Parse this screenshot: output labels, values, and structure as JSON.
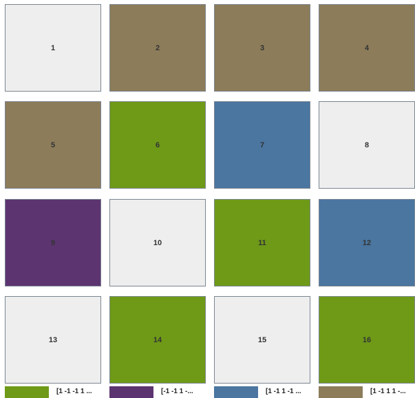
{
  "colors": {
    "white": "#eeeeee",
    "tan": "#8c7c5a",
    "green": "#6e9a18",
    "blue": "#4a76a0",
    "purple": "#5c3470"
  },
  "tiles": [
    {
      "label": "1",
      "color": "white"
    },
    {
      "label": "2",
      "color": "tan"
    },
    {
      "label": "3",
      "color": "tan"
    },
    {
      "label": "4",
      "color": "tan"
    },
    {
      "label": "5",
      "color": "tan"
    },
    {
      "label": "6",
      "color": "green"
    },
    {
      "label": "7",
      "color": "blue"
    },
    {
      "label": "8",
      "color": "white"
    },
    {
      "label": "9",
      "color": "purple"
    },
    {
      "label": "10",
      "color": "white"
    },
    {
      "label": "11",
      "color": "green"
    },
    {
      "label": "12",
      "color": "blue"
    },
    {
      "label": "13",
      "color": "white"
    },
    {
      "label": "14",
      "color": "green"
    },
    {
      "label": "15",
      "color": "white"
    },
    {
      "label": "16",
      "color": "green"
    }
  ],
  "legend": [
    {
      "color": "green",
      "label": "[1 -1 -1 1 ..."
    },
    {
      "color": "purple",
      "label": "[-1 -1 1 -..."
    },
    {
      "color": "blue",
      "label": "[1 -1 1 -1 ..."
    },
    {
      "color": "tan",
      "label": "[1 -1 1 1 -..."
    }
  ]
}
